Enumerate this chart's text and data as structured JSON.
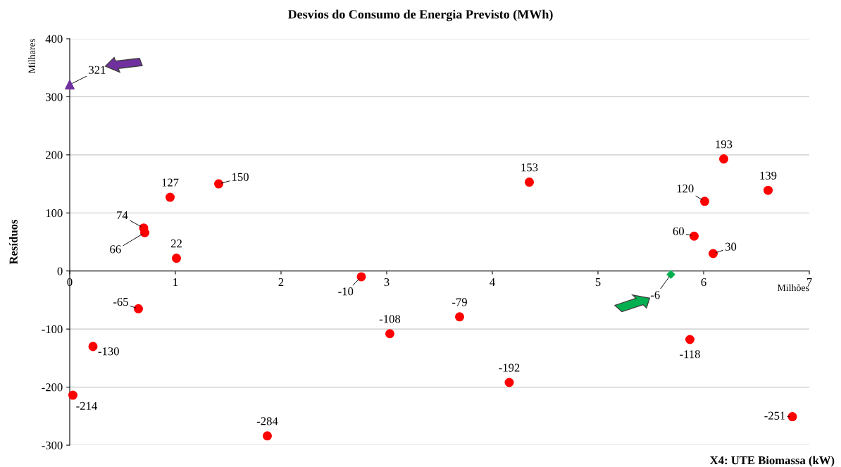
{
  "chart_data": {
    "type": "scatter",
    "title": "Desvios do Consumo de Energia Previsto (MWh)",
    "xlabel": "X4: UTE Biomassa (kW)",
    "ylabel": "Resíduos",
    "annotations": [
      "Milhares",
      "Milhões"
    ],
    "series": [
      {
        "color": "#ff0000",
        "marker": "circle",
        "x": [
          0.03,
          0.22,
          0.65,
          0.7,
          0.71,
          0.95,
          1.01,
          1.41,
          1.87,
          2.76,
          3.03,
          3.69,
          4.16,
          4.35,
          5.87,
          5.91,
          6.01,
          6.09,
          6.19,
          6.61,
          6.84
        ],
        "values": [
          -214,
          -130,
          -65,
          74,
          66,
          127,
          22,
          150,
          -284,
          -10,
          -108,
          -79,
          -192,
          153,
          -118,
          60,
          120,
          30,
          193,
          139,
          -251
        ]
      },
      {
        "color": "#7030a0",
        "marker": "triangle",
        "x": [
          0.0
        ],
        "values": [
          321
        ]
      },
      {
        "color": "#00b050",
        "marker": "diamond",
        "x": [
          5.69
        ],
        "values": [
          -6
        ]
      }
    ],
    "data_labels": true,
    "xlim": [
      0,
      7
    ],
    "ylim": [
      -300,
      400
    ],
    "xticks": [
      0,
      1,
      2,
      3,
      4,
      5,
      6,
      7
    ],
    "yticks": [
      -300,
      -200,
      -100,
      0,
      100,
      200,
      300,
      400
    ],
    "grid": "y",
    "legend": false
  }
}
